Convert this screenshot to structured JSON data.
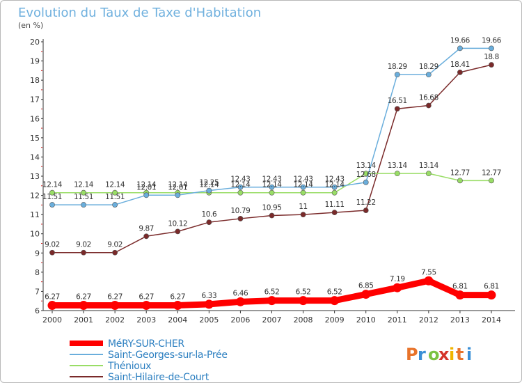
{
  "chart_data": {
    "type": "line",
    "title": "Evolution du Taux de Taxe d'Habitation",
    "subtitle": "(en %)",
    "xlabel": "",
    "ylabel": "",
    "ylim": [
      6,
      20
    ],
    "yticks": [
      6,
      7,
      8,
      9,
      10,
      11,
      12,
      13,
      14,
      15,
      16,
      17,
      18,
      19,
      20
    ],
    "grid": false,
    "legend_position": "bottom-left",
    "x": [
      "2000",
      "2001",
      "2002",
      "2003",
      "2004",
      "2005",
      "2006",
      "2007",
      "2008",
      "2009",
      "2010",
      "2011",
      "2012",
      "2013",
      "2014"
    ],
    "series": [
      {
        "name": "MéRY-SUR-CHER",
        "color": "#ff0000",
        "values": [
          6.27,
          6.27,
          6.27,
          6.27,
          6.27,
          6.33,
          6.46,
          6.52,
          6.52,
          6.52,
          6.85,
          7.19,
          7.55,
          6.81,
          6.81
        ],
        "labels": [
          "6.27",
          "6.27",
          "6.27",
          "6.27",
          "6.27",
          "6.33",
          "6.46",
          "6.52",
          "6.52",
          "6.52",
          "6.85",
          "7.19",
          "7.55",
          "6.81",
          "6.81"
        ]
      },
      {
        "name": "Saint-Georges-sur-la-Prée",
        "color": "#6aaedc",
        "values": [
          11.51,
          11.51,
          11.51,
          12.01,
          12.01,
          12.25,
          12.43,
          12.43,
          12.43,
          12.43,
          12.68,
          18.29,
          18.29,
          19.66,
          19.66
        ],
        "labels": [
          "11.51",
          "11.51",
          "11.51",
          "12.01",
          "12.01",
          "12.25",
          "12.43",
          "12.43",
          "12.43",
          "12.43",
          "12.68",
          "18.29",
          "18.29",
          "19.66",
          "19.66"
        ]
      },
      {
        "name": "Thénioux",
        "color": "#99dd66",
        "values": [
          12.14,
          12.14,
          12.14,
          12.14,
          12.14,
          12.14,
          12.14,
          12.14,
          12.14,
          12.14,
          13.14,
          13.14,
          13.14,
          12.77,
          12.77
        ],
        "labels": [
          "12.14",
          "12.14",
          "12.14",
          "12.14",
          "12.14",
          "12.14",
          "12.14",
          "12.14",
          "12.14",
          "12.14",
          "13.14",
          "13.14",
          "13.14",
          "12.77",
          "12.77"
        ]
      },
      {
        "name": "Saint-Hilaire-de-Court",
        "color": "#7a2a2a",
        "values": [
          9.02,
          9.02,
          9.02,
          9.87,
          10.12,
          10.6,
          10.79,
          10.95,
          11,
          11.11,
          11.22,
          16.51,
          16.68,
          18.41,
          18.8
        ],
        "labels": [
          "9.02",
          "9.02",
          "9.02",
          "9.87",
          "10.12",
          "10.6",
          "10.79",
          "10.95",
          "11",
          "11.11",
          "11.22",
          "16.51",
          "16.68",
          "18.41",
          "18.8"
        ]
      }
    ]
  },
  "logo": {
    "text": "Proxiti",
    "colors": [
      "#e8732a",
      "#3a8fd6",
      "#7cc242",
      "#d4342a",
      "#f0b400"
    ]
  }
}
